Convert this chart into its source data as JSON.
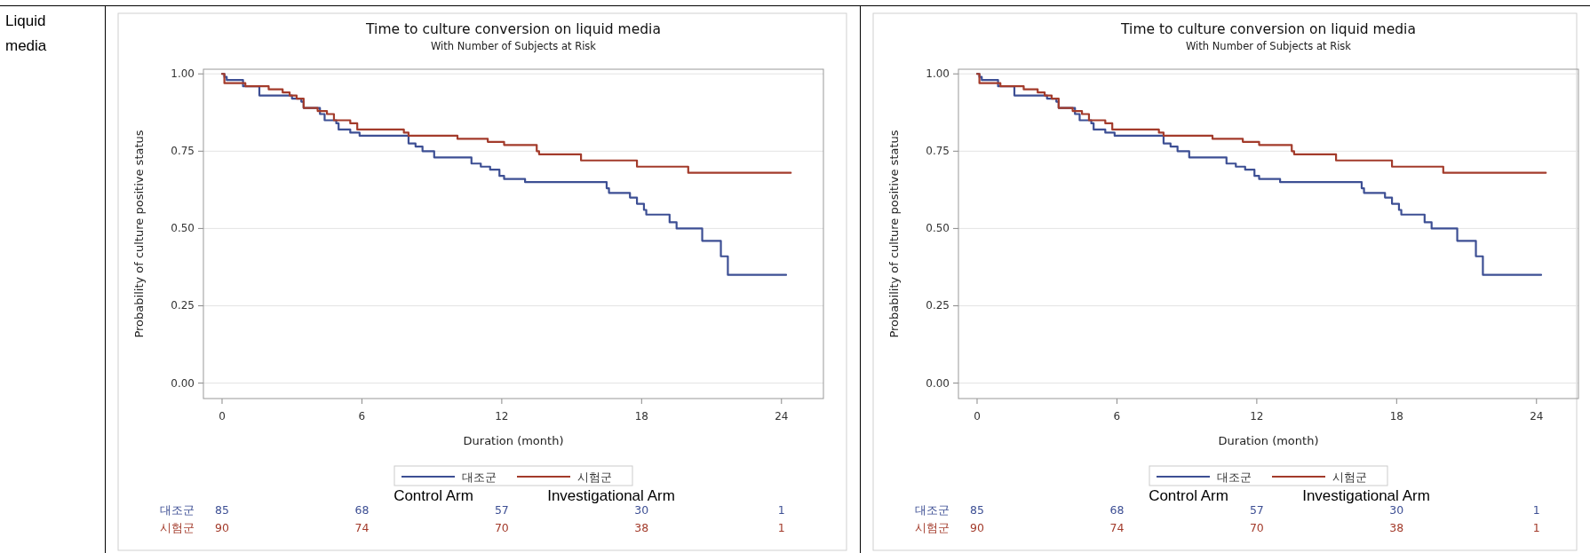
{
  "chart_data": [
    {
      "type": "step",
      "title": "Time to culture conversion on liquid media",
      "subtitle": "With Number of Subjects at Risk",
      "xlabel": "Duration (month)",
      "ylabel": "Probability of culture positive status",
      "xlim": [
        -0.8,
        25.8
      ],
      "ylim": [
        -0.05,
        1.015
      ],
      "xticks": [
        0,
        6,
        12,
        18,
        24
      ],
      "yticks": [
        {
          "value": 0,
          "label": "0.00"
        },
        {
          "value": 0.25,
          "label": "0.25"
        },
        {
          "value": 0.5,
          "label": "0.50"
        },
        {
          "value": 0.75,
          "label": "0.75"
        },
        {
          "value": 1,
          "label": "1.00"
        }
      ],
      "grid": "y",
      "legend": "bottom",
      "series": [
        {
          "name": "대조군",
          "color": "#3d4f94",
          "x": [
            0,
            0.1,
            0.2,
            0.9,
            1.6,
            3.0,
            3.4,
            3.5,
            4.2,
            4.4,
            4.9,
            5.0,
            5.5,
            5.9,
            8.0,
            8.3,
            8.6,
            9.1,
            10.7,
            11.1,
            11.5,
            11.9,
            12.1,
            13.0,
            16.5,
            16.6,
            17.5,
            17.8,
            18.1,
            18.2,
            19.2,
            19.5,
            20.6,
            21.4,
            21.7,
            24.2
          ],
          "values": [
            1.0,
            0.99,
            0.98,
            0.96,
            0.93,
            0.92,
            0.91,
            0.89,
            0.87,
            0.85,
            0.84,
            0.82,
            0.81,
            0.8,
            0.775,
            0.765,
            0.75,
            0.73,
            0.71,
            0.7,
            0.69,
            0.67,
            0.66,
            0.65,
            0.63,
            0.615,
            0.6,
            0.58,
            0.56,
            0.545,
            0.52,
            0.5,
            0.46,
            0.41,
            0.35,
            0.35
          ]
        },
        {
          "name": "시험군",
          "color": "#a33b2b",
          "x": [
            0,
            0.1,
            1.0,
            2.0,
            2.6,
            2.9,
            3.2,
            3.5,
            4.1,
            4.5,
            4.8,
            5.5,
            5.8,
            7.8,
            8.0,
            10.1,
            11.4,
            12.1,
            13.5,
            13.6,
            15.4,
            17.8,
            20.0,
            24.4
          ],
          "values": [
            1.0,
            0.97,
            0.96,
            0.95,
            0.94,
            0.93,
            0.92,
            0.89,
            0.88,
            0.87,
            0.85,
            0.84,
            0.82,
            0.81,
            0.8,
            0.79,
            0.78,
            0.77,
            0.75,
            0.74,
            0.72,
            0.7,
            0.68,
            0.68
          ]
        }
      ],
      "annotations": [
        "Control Arm",
        "Investigational Arm",
        "85",
        "68",
        "57",
        "30",
        "1",
        "90",
        "74",
        "70",
        "38",
        "1",
        "Liquid media"
      ]
    },
    {
      "type": "step",
      "title": "Time to culture conversion on liquid media",
      "subtitle": "With Number of Subjects at Risk",
      "xlabel": "Duration (month)",
      "ylabel": "Probability of culture positive status",
      "xlim": [
        -0.8,
        25.8
      ],
      "ylim": [
        -0.05,
        1.015
      ],
      "xticks": [
        0,
        6,
        12,
        18,
        24
      ],
      "yticks": [
        {
          "value": 0,
          "label": "0.00"
        },
        {
          "value": 0.25,
          "label": "0.25"
        },
        {
          "value": 0.5,
          "label": "0.50"
        },
        {
          "value": 0.75,
          "label": "0.75"
        },
        {
          "value": 1,
          "label": "1.00"
        }
      ],
      "grid": "y",
      "legend": "bottom",
      "series": [
        {
          "name": "대조군",
          "color": "#3d4f94",
          "x": [
            0,
            0.1,
            0.2,
            0.9,
            1.6,
            3.0,
            3.4,
            3.5,
            4.2,
            4.4,
            4.9,
            5.0,
            5.5,
            5.9,
            8.0,
            8.3,
            8.6,
            9.1,
            10.7,
            11.1,
            11.5,
            11.9,
            12.1,
            13.0,
            16.5,
            16.6,
            17.5,
            17.8,
            18.1,
            18.2,
            19.2,
            19.5,
            20.6,
            21.4,
            21.7,
            24.2
          ],
          "values": [
            1.0,
            0.99,
            0.98,
            0.96,
            0.93,
            0.92,
            0.91,
            0.89,
            0.87,
            0.85,
            0.84,
            0.82,
            0.81,
            0.8,
            0.775,
            0.765,
            0.75,
            0.73,
            0.71,
            0.7,
            0.69,
            0.67,
            0.66,
            0.65,
            0.63,
            0.615,
            0.6,
            0.58,
            0.56,
            0.545,
            0.52,
            0.5,
            0.46,
            0.41,
            0.35,
            0.35
          ]
        },
        {
          "name": "시험군",
          "color": "#a33b2b",
          "x": [
            0,
            0.1,
            1.0,
            2.0,
            2.6,
            2.9,
            3.2,
            3.5,
            4.1,
            4.5,
            4.8,
            5.5,
            5.8,
            7.8,
            8.0,
            10.1,
            11.4,
            12.1,
            13.5,
            13.6,
            15.4,
            17.8,
            20.0,
            24.4
          ],
          "values": [
            1.0,
            0.97,
            0.96,
            0.95,
            0.94,
            0.93,
            0.92,
            0.89,
            0.88,
            0.87,
            0.85,
            0.84,
            0.82,
            0.81,
            0.8,
            0.79,
            0.78,
            0.77,
            0.75,
            0.74,
            0.72,
            0.7,
            0.68,
            0.68
          ]
        }
      ],
      "annotations": [
        "Control Arm",
        "Investigational Arm",
        "85",
        "68",
        "57",
        "30",
        "1",
        "90",
        "74",
        "70",
        "38",
        "1"
      ]
    }
  ]
}
